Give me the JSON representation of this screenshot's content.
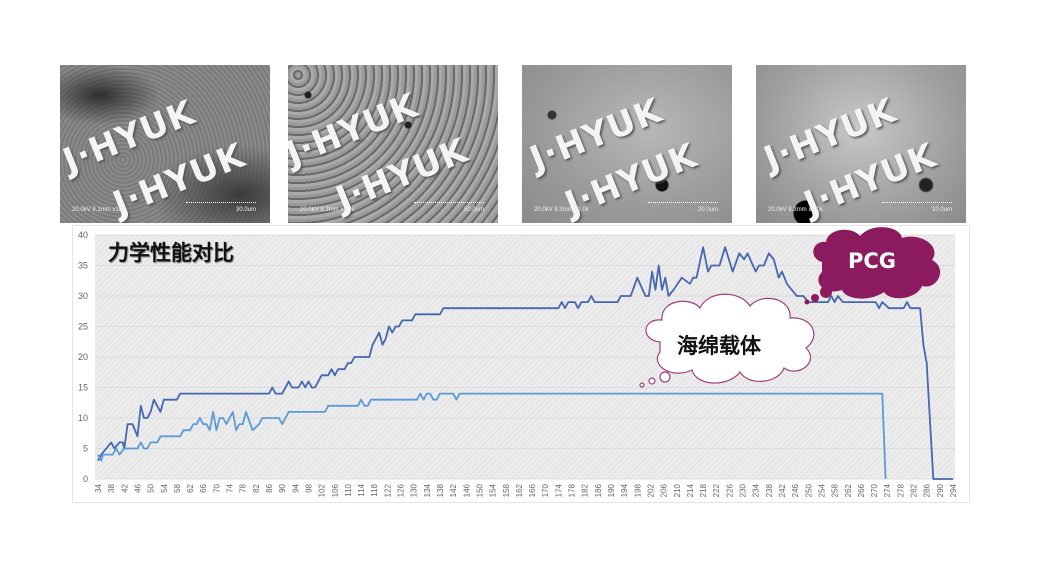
{
  "sem_images": [
    {
      "watermark": "J·HYUK",
      "caption": "20.0kV 8.1mm x180",
      "scale": "30.0um"
    },
    {
      "watermark": "J·HYUK",
      "caption": "20.0kV 8.3mm x1.0k",
      "scale": "50.0um"
    },
    {
      "watermark": "J·HYUK",
      "caption": "20.0kV 8.3mm x2.0k",
      "scale": "20.0um"
    },
    {
      "watermark": "J·HYUK",
      "caption": "20.0kV 8.3mm x4.0k",
      "scale": "10.0um"
    }
  ],
  "annotations": {
    "pcg": "PCG",
    "sponge": "海绵载体"
  },
  "colors": {
    "pcg_series": "#4566b0",
    "sponge_series": "#5b9bd5",
    "pcg_cloud": "#8b1a5e",
    "sponge_cloud_outline": "#a0407a"
  },
  "chart_data": {
    "type": "line",
    "title": "力学性能对比",
    "xlim": [
      34,
      294
    ],
    "ylim": [
      0,
      40
    ],
    "yticks": [
      0,
      5,
      10,
      15,
      20,
      25,
      30,
      35,
      40
    ],
    "xticks": [
      34,
      38,
      42,
      46,
      50,
      54,
      58,
      62,
      66,
      70,
      74,
      78,
      82,
      86,
      90,
      94,
      98,
      102,
      106,
      110,
      114,
      118,
      122,
      126,
      130,
      134,
      138,
      142,
      146,
      150,
      154,
      158,
      162,
      166,
      170,
      174,
      178,
      182,
      186,
      190,
      194,
      198,
      202,
      206,
      210,
      214,
      218,
      222,
      226,
      230,
      234,
      238,
      242,
      246,
      250,
      254,
      258,
      262,
      266,
      270,
      274,
      278,
      282,
      286,
      290,
      294
    ],
    "grid": true,
    "legend": "none",
    "series": [
      {
        "points": [
          [
            34,
            3
          ],
          [
            35,
            4
          ],
          [
            38,
            6
          ],
          [
            39,
            5
          ],
          [
            40.5,
            6
          ],
          [
            41.5,
            6
          ],
          [
            42,
            5
          ],
          [
            43,
            9
          ],
          [
            44.5,
            9
          ],
          [
            46,
            7
          ],
          [
            47,
            12
          ],
          [
            48,
            10
          ],
          [
            49,
            10
          ],
          [
            50,
            11
          ],
          [
            51,
            13
          ],
          [
            53,
            11
          ],
          [
            54,
            13
          ],
          [
            58,
            13
          ],
          [
            59,
            14
          ],
          [
            86,
            14
          ],
          [
            87,
            15
          ],
          [
            88,
            14
          ],
          [
            90,
            14
          ],
          [
            92,
            16
          ],
          [
            93,
            15
          ],
          [
            95,
            15
          ],
          [
            96,
            16
          ],
          [
            97,
            15
          ],
          [
            98,
            16
          ],
          [
            99,
            15
          ],
          [
            100,
            15
          ],
          [
            102,
            17
          ],
          [
            104,
            17
          ],
          [
            105,
            18
          ],
          [
            106,
            17
          ],
          [
            107,
            18
          ],
          [
            109,
            18
          ],
          [
            110,
            19
          ],
          [
            111,
            19
          ],
          [
            112,
            20
          ],
          [
            116.5,
            20
          ],
          [
            117.5,
            22
          ],
          [
            119.5,
            24
          ],
          [
            120.5,
            22
          ],
          [
            121.5,
            23
          ],
          [
            122.5,
            25
          ],
          [
            123.5,
            24
          ],
          [
            124.5,
            25
          ],
          [
            125.5,
            25
          ],
          [
            126.5,
            26
          ],
          [
            129.5,
            26
          ],
          [
            130.5,
            27
          ],
          [
            138,
            27
          ],
          [
            139,
            28
          ],
          [
            174,
            28
          ],
          [
            175,
            29
          ],
          [
            176,
            28
          ],
          [
            177,
            29
          ],
          [
            179,
            29
          ],
          [
            180,
            28
          ],
          [
            181,
            29
          ],
          [
            183,
            29
          ],
          [
            184,
            30
          ],
          [
            185,
            29
          ],
          [
            192,
            29
          ],
          [
            193,
            30
          ],
          [
            196,
            30
          ],
          [
            198,
            33
          ],
          [
            200.5,
            30
          ],
          [
            201.5,
            30
          ],
          [
            202.5,
            34
          ],
          [
            203.5,
            31
          ],
          [
            204.5,
            35
          ],
          [
            205.5,
            31
          ],
          [
            206.5,
            33
          ],
          [
            207.5,
            30
          ],
          [
            209,
            31
          ],
          [
            211.5,
            33
          ],
          [
            214,
            32
          ],
          [
            215,
            33
          ],
          [
            216,
            33
          ],
          [
            218,
            38
          ],
          [
            219.5,
            34
          ],
          [
            220.5,
            35
          ],
          [
            223,
            35
          ],
          [
            224.7,
            38
          ],
          [
            227,
            34
          ],
          [
            229,
            37
          ],
          [
            230.5,
            36
          ],
          [
            231.5,
            37
          ],
          [
            234,
            34
          ],
          [
            235,
            35
          ],
          [
            236.5,
            35
          ],
          [
            238,
            37
          ],
          [
            239.5,
            36
          ],
          [
            241,
            33
          ],
          [
            242,
            34
          ],
          [
            243.5,
            32
          ],
          [
            245,
            31
          ],
          [
            246.5,
            30
          ],
          [
            248.5,
            30
          ],
          [
            250,
            29
          ],
          [
            256,
            29
          ],
          [
            257,
            30
          ],
          [
            258,
            29
          ],
          [
            259,
            30
          ],
          [
            260.5,
            29
          ],
          [
            270.5,
            29
          ],
          [
            271.5,
            28
          ],
          [
            272.5,
            29
          ],
          [
            274.5,
            28
          ],
          [
            279,
            28
          ],
          [
            280,
            29
          ],
          [
            281,
            28
          ],
          [
            284,
            28
          ],
          [
            285,
            22
          ],
          [
            286,
            19
          ],
          [
            288,
            0
          ],
          [
            294,
            0
          ]
        ]
      },
      {
        "points": [
          [
            34,
            4
          ],
          [
            35,
            3
          ],
          [
            35.5,
            4
          ],
          [
            38.5,
            4
          ],
          [
            39.5,
            5
          ],
          [
            40.5,
            4
          ],
          [
            42,
            5
          ],
          [
            46,
            5
          ],
          [
            47,
            6
          ],
          [
            48,
            5
          ],
          [
            49,
            5
          ],
          [
            50,
            6
          ],
          [
            52,
            6
          ],
          [
            53,
            7
          ],
          [
            59,
            7
          ],
          [
            60,
            8
          ],
          [
            62,
            8
          ],
          [
            63,
            9
          ],
          [
            64,
            9
          ],
          [
            65,
            10
          ],
          [
            66,
            9
          ],
          [
            67,
            9
          ],
          [
            68,
            8
          ],
          [
            69,
            11
          ],
          [
            70,
            8
          ],
          [
            71,
            10
          ],
          [
            72,
            10
          ],
          [
            73,
            9
          ],
          [
            75,
            11
          ],
          [
            76,
            8
          ],
          [
            77,
            9
          ],
          [
            78,
            9
          ],
          [
            79,
            11
          ],
          [
            81,
            8
          ],
          [
            83,
            9
          ],
          [
            84,
            10
          ],
          [
            89,
            10
          ],
          [
            90,
            9
          ],
          [
            92,
            11
          ],
          [
            103,
            11
          ],
          [
            104,
            12
          ],
          [
            113,
            12
          ],
          [
            114,
            13
          ],
          [
            115,
            12
          ],
          [
            116,
            12
          ],
          [
            117,
            13
          ],
          [
            131,
            13
          ],
          [
            132,
            14
          ],
          [
            133,
            13
          ],
          [
            134,
            14
          ],
          [
            135,
            14
          ],
          [
            136,
            13
          ],
          [
            137,
            13
          ],
          [
            138,
            14
          ],
          [
            142,
            14
          ],
          [
            143,
            13
          ],
          [
            144,
            14
          ],
          [
            272.5,
            14
          ],
          [
            273.5,
            0
          ]
        ]
      }
    ]
  }
}
